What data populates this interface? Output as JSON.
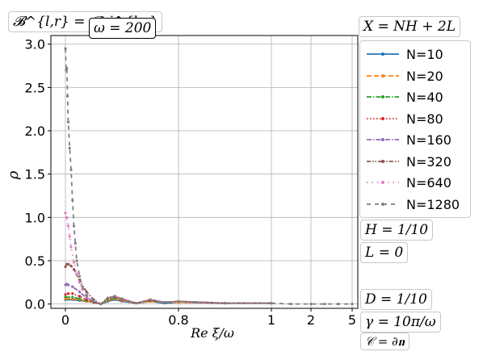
{
  "chart_data": {
    "type": "line",
    "ylabel": "ρ",
    "xlabel": "Re ξ/ω",
    "x_ticks": [
      "0",
      "0.8",
      "1",
      "2",
      "5"
    ],
    "y_ticks": [
      "0.0",
      "0.5",
      "1.0",
      "1.5",
      "2.0",
      "2.5",
      "3.0"
    ],
    "ylim": [
      -0.05,
      3.1
    ],
    "x_scale": "piecewise: linear 0–1 then compressed 1–5",
    "grid": true,
    "legend_position": "right",
    "series": [
      {
        "name": "N=10",
        "color": "#1f77b4",
        "style": "solid",
        "x": [
          0.0,
          0.05,
          0.1,
          0.15,
          0.2,
          0.25,
          0.3,
          0.35,
          0.4,
          0.5,
          0.6,
          0.7,
          0.8,
          0.9,
          1.0
        ],
        "y": [
          0.05,
          0.05,
          0.04,
          0.03,
          0.02,
          0.0,
          0.03,
          0.05,
          0.03,
          0.01,
          0.03,
          0.01,
          0.02,
          0.01,
          0.01
        ]
      },
      {
        "name": "N=20",
        "color": "#ff7f0e",
        "style": "dashed",
        "x": [
          0.0,
          0.05,
          0.1,
          0.15,
          0.2,
          0.25,
          0.3,
          0.35,
          0.4,
          0.5,
          0.6,
          0.7,
          0.8,
          0.9,
          1.0
        ],
        "y": [
          0.06,
          0.06,
          0.05,
          0.03,
          0.02,
          0.0,
          0.04,
          0.06,
          0.04,
          0.01,
          0.03,
          0.02,
          0.02,
          0.01,
          0.01
        ]
      },
      {
        "name": "N=40",
        "color": "#2ca02c",
        "style": "dashdot",
        "x": [
          0.0,
          0.05,
          0.1,
          0.15,
          0.2,
          0.25,
          0.3,
          0.35,
          0.4,
          0.5,
          0.6,
          0.7,
          0.8,
          0.9,
          1.0
        ],
        "y": [
          0.08,
          0.08,
          0.06,
          0.04,
          0.02,
          0.0,
          0.05,
          0.07,
          0.05,
          0.01,
          0.04,
          0.02,
          0.03,
          0.01,
          0.01
        ]
      },
      {
        "name": "N=80",
        "color": "#d62728",
        "style": "dotted",
        "x": [
          0.0,
          0.02,
          0.05,
          0.1,
          0.15,
          0.2,
          0.25,
          0.3,
          0.35,
          0.4,
          0.5,
          0.6,
          0.7,
          0.8,
          0.9,
          1.0
        ],
        "y": [
          0.11,
          0.12,
          0.12,
          0.09,
          0.05,
          0.02,
          0.0,
          0.06,
          0.08,
          0.05,
          0.01,
          0.04,
          0.02,
          0.03,
          0.01,
          0.01
        ]
      },
      {
        "name": "N=160",
        "color": "#9467bd",
        "style": "dashdot",
        "x": [
          0.0,
          0.01,
          0.02,
          0.05,
          0.1,
          0.15,
          0.2,
          0.25,
          0.3,
          0.35,
          0.4,
          0.5,
          0.6,
          0.7,
          0.8,
          0.9,
          1.0
        ],
        "y": [
          0.22,
          0.23,
          0.22,
          0.2,
          0.14,
          0.07,
          0.03,
          0.0,
          0.07,
          0.09,
          0.06,
          0.01,
          0.05,
          0.02,
          0.03,
          0.01,
          0.01
        ]
      },
      {
        "name": "N=320",
        "color": "#8c564b",
        "style": "dashdotdot",
        "x": [
          0.0,
          0.01,
          0.02,
          0.04,
          0.06,
          0.08,
          0.1,
          0.15,
          0.2,
          0.25,
          0.3,
          0.35,
          0.4,
          0.5,
          0.6,
          0.7,
          0.8,
          0.9,
          1.0
        ],
        "y": [
          0.43,
          0.46,
          0.46,
          0.44,
          0.4,
          0.34,
          0.27,
          0.14,
          0.05,
          0.0,
          0.07,
          0.09,
          0.06,
          0.01,
          0.05,
          0.02,
          0.03,
          0.01,
          0.01
        ]
      },
      {
        "name": "N=640",
        "color": "#e377c2",
        "style": "loosedotted",
        "x": [
          0.0,
          0.01,
          0.02,
          0.03,
          0.04,
          0.06,
          0.08,
          0.1,
          0.12,
          0.15,
          0.2,
          0.25,
          0.3,
          0.35,
          0.4,
          0.5,
          0.6,
          0.7,
          0.8,
          0.9,
          1.0
        ],
        "y": [
          1.05,
          1.0,
          0.9,
          0.78,
          0.66,
          0.48,
          0.35,
          0.25,
          0.17,
          0.09,
          0.03,
          0.0,
          0.07,
          0.09,
          0.06,
          0.01,
          0.05,
          0.02,
          0.03,
          0.01,
          0.01
        ]
      },
      {
        "name": "N=1280",
        "color": "#7f7f7f",
        "style": "loosedashed",
        "x": [
          0.0,
          0.005,
          0.01,
          0.015,
          0.02,
          0.03,
          0.04,
          0.05,
          0.06,
          0.07,
          0.08,
          0.1,
          0.12,
          0.15,
          0.2,
          0.25,
          0.3,
          0.35,
          0.4,
          0.5,
          0.6,
          0.7,
          0.8,
          0.9,
          1.0,
          1.5,
          2.0,
          3.0,
          4.0,
          5.0
        ],
        "y": [
          2.95,
          2.7,
          2.72,
          2.4,
          2.1,
          1.8,
          1.55,
          1.2,
          0.9,
          0.7,
          0.5,
          0.32,
          0.2,
          0.1,
          0.03,
          0.0,
          0.07,
          0.09,
          0.06,
          0.01,
          0.05,
          0.02,
          0.03,
          0.01,
          0.01,
          0.0,
          0.0,
          0.0,
          0.0,
          0.0
        ]
      }
    ]
  },
  "annotations": {
    "bc_label": "𝓑^{l,r} = 𝓑_j^{l,r}",
    "omega": "ω = 200",
    "x_def": "X = NH + 2L",
    "h_val": "H = 1/10",
    "l_val": "L = 0",
    "d_val": "D = 1/10",
    "gamma_val": "γ = 10π/ω",
    "c_val": "𝒞 = ∂𝐧"
  }
}
